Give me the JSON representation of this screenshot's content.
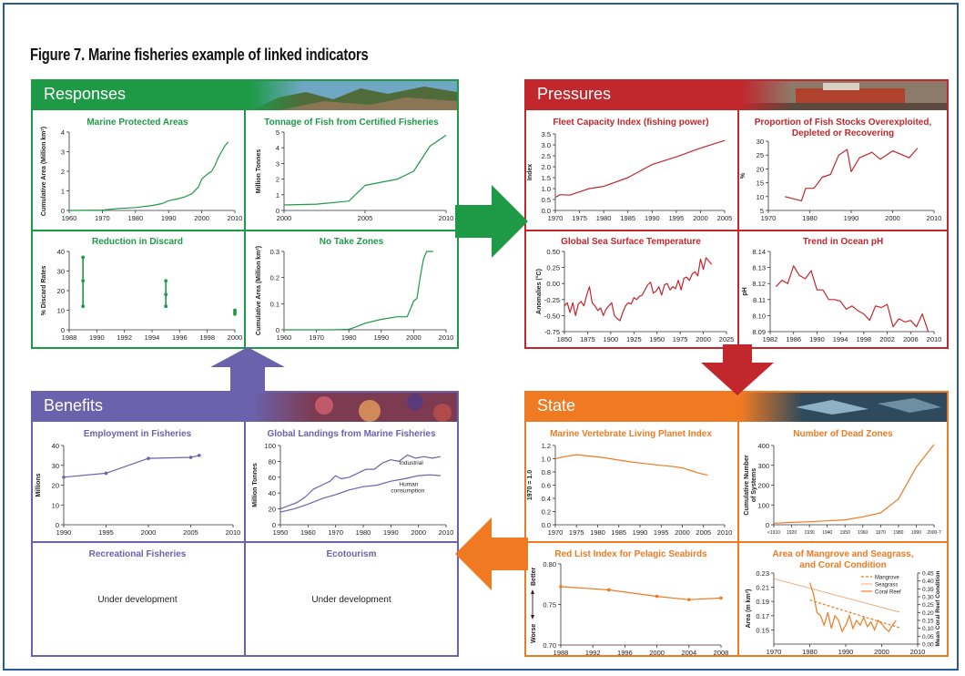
{
  "figure": {
    "title": "Figure 7. Marine fisheries example of linked indicators"
  },
  "responses": {
    "label": "Responses"
  },
  "pressures": {
    "label": "Pressures"
  },
  "state": {
    "label": "State"
  },
  "benefits": {
    "label": "Benefits",
    "recreational_title": "Recreational Fisheries",
    "recreational_note": "Under development",
    "ecotourism_title": "Ecotourism",
    "ecotourism_note": "Under development"
  },
  "chart_data": [
    {
      "type": "line",
      "title": "Marine Protected Areas",
      "ylabel": "Cumulative Area (Million km²)",
      "color": "#1e9a47",
      "xlim": [
        1960,
        2010
      ],
      "ylim": [
        0,
        4
      ],
      "xticks": [
        1960,
        1970,
        1980,
        1990,
        2000,
        2010
      ],
      "yticks": [
        0,
        1,
        2,
        3,
        4
      ],
      "series": [
        {
          "x": [
            1960,
            1970,
            1975,
            1980,
            1985,
            1988,
            1990,
            1993,
            1995,
            1997,
            1999,
            2000,
            2002,
            2003,
            2004,
            2005,
            2006,
            2007,
            2008
          ],
          "y": [
            0,
            0.02,
            0.1,
            0.15,
            0.25,
            0.35,
            0.5,
            0.6,
            0.7,
            0.85,
            1.2,
            1.6,
            1.9,
            2.0,
            2.3,
            2.7,
            3.0,
            3.3,
            3.5
          ]
        }
      ]
    },
    {
      "type": "line",
      "title": "Tonnage of Fish from Certified Fisheries",
      "ylabel": "Million Tonnes",
      "color": "#1e9a47",
      "xlim": [
        2000,
        2010
      ],
      "ylim": [
        0,
        5
      ],
      "xticks": [
        2000,
        2005,
        2010
      ],
      "yticks": [
        0,
        1,
        2,
        3,
        4,
        5
      ],
      "series": [
        {
          "x": [
            2000,
            2002,
            2004,
            2005,
            2006,
            2007,
            2008,
            2009,
            2010
          ],
          "y": [
            0.35,
            0.4,
            0.6,
            1.6,
            1.8,
            2.0,
            2.5,
            4.1,
            4.8
          ]
        }
      ]
    },
    {
      "type": "range",
      "title": "Reduction in Discard",
      "ylabel": "% Discard Rates",
      "color": "#1e9a47",
      "xlim": [
        1988,
        2000
      ],
      "ylim": [
        0,
        40
      ],
      "xticks": [
        1988,
        1990,
        1992,
        1994,
        1996,
        1998,
        2000
      ],
      "yticks": [
        0,
        10,
        20,
        30,
        40
      ],
      "ranges": [
        {
          "x": 1989,
          "points": [
            12,
            25,
            37
          ]
        },
        {
          "x": 1995,
          "points": [
            12,
            18,
            25
          ]
        },
        {
          "x": 2000,
          "points": [
            8,
            9,
            10
          ]
        }
      ]
    },
    {
      "type": "line",
      "title": "No Take Zones",
      "ylabel": "Cumulative Area (Million km²)",
      "color": "#1e9a47",
      "xlim": [
        1960,
        2010
      ],
      "ylim": [
        0,
        0.3
      ],
      "xticks": [
        1960,
        1970,
        1980,
        1990,
        2000,
        2010
      ],
      "yticks": [
        0,
        0.1,
        0.2,
        0.3
      ],
      "series": [
        {
          "x": [
            1960,
            1975,
            1980,
            1982,
            1985,
            1990,
            1995,
            1998,
            2000,
            2001,
            2002,
            2003,
            2004,
            2005,
            2006
          ],
          "y": [
            0,
            0,
            0.002,
            0.01,
            0.025,
            0.04,
            0.05,
            0.05,
            0.11,
            0.12,
            0.2,
            0.27,
            0.3,
            0.3,
            0.3
          ]
        }
      ]
    },
    {
      "type": "line",
      "title": "Fleet Capacity Index (fishing power)",
      "ylabel": "Index",
      "color": "#c1272d",
      "xlim": [
        1970,
        2005
      ],
      "ylim": [
        0,
        3.5
      ],
      "xticks": [
        1970,
        1975,
        1980,
        1985,
        1990,
        1995,
        2000,
        2005
      ],
      "yticks": [
        0,
        0.5,
        1.0,
        1.5,
        2.0,
        2.5,
        3.0,
        3.5
      ],
      "series": [
        {
          "x": [
            1970,
            1971,
            1973,
            1975,
            1977,
            1980,
            1985,
            1990,
            1995,
            2000,
            2005
          ],
          "y": [
            0.6,
            0.72,
            0.7,
            0.85,
            1.0,
            1.1,
            1.5,
            2.1,
            2.45,
            2.85,
            3.2
          ]
        }
      ]
    },
    {
      "type": "line",
      "title_line1": "Proportion of Fish Stocks Overexploited,",
      "title_line2": "Depleted or Recovering",
      "ylabel": "%",
      "color": "#c1272d",
      "xlim": [
        1970,
        2010
      ],
      "ylim": [
        5,
        30
      ],
      "xticks": [
        1970,
        1980,
        1990,
        2000,
        2010
      ],
      "yticks": [
        5,
        10,
        15,
        20,
        25,
        30
      ],
      "series": [
        {
          "x": [
            1974,
            1978,
            1979,
            1981,
            1983,
            1985,
            1987,
            1989,
            1990,
            1992,
            1995,
            1997,
            2000,
            2004,
            2006
          ],
          "y": [
            10,
            8.5,
            13,
            13,
            17,
            18,
            25,
            27,
            19,
            24,
            26,
            23.5,
            26.5,
            24,
            27.5
          ]
        }
      ]
    },
    {
      "type": "line",
      "title": "Global Sea Surface Temperature",
      "ylabel": "Anomalies (°C)",
      "color": "#c1272d",
      "xlim": [
        1850,
        2025
      ],
      "ylim": [
        -0.75,
        0.5
      ],
      "xticks": [
        1850,
        1875,
        1900,
        1925,
        1950,
        1975,
        2000,
        2025
      ],
      "yticks": [
        -0.75,
        -0.5,
        -0.25,
        0,
        0.25,
        0.5
      ],
      "series": [
        {
          "x": [
            1850,
            1853,
            1856,
            1859,
            1862,
            1865,
            1868,
            1871,
            1874,
            1877,
            1880,
            1883,
            1886,
            1889,
            1892,
            1895,
            1898,
            1901,
            1904,
            1907,
            1910,
            1913,
            1916,
            1919,
            1922,
            1925,
            1928,
            1931,
            1934,
            1937,
            1940,
            1943,
            1946,
            1949,
            1952,
            1955,
            1958,
            1961,
            1964,
            1967,
            1970,
            1973,
            1976,
            1979,
            1982,
            1985,
            1988,
            1991,
            1994,
            1997,
            2000,
            2003,
            2006,
            2009
          ],
          "y": [
            -0.35,
            -0.3,
            -0.45,
            -0.3,
            -0.5,
            -0.32,
            -0.28,
            -0.35,
            -0.18,
            -0.05,
            -0.3,
            -0.35,
            -0.42,
            -0.38,
            -0.5,
            -0.4,
            -0.35,
            -0.3,
            -0.5,
            -0.55,
            -0.58,
            -0.45,
            -0.35,
            -0.3,
            -0.32,
            -0.22,
            -0.25,
            -0.2,
            -0.18,
            -0.1,
            -0.02,
            0.02,
            -0.15,
            -0.12,
            -0.05,
            -0.18,
            -0.02,
            0.0,
            -0.1,
            -0.05,
            -0.08,
            0.05,
            -0.1,
            0.08,
            0.1,
            0.05,
            0.15,
            0.18,
            0.12,
            0.38,
            0.22,
            0.4,
            0.35,
            0.3
          ]
        }
      ]
    },
    {
      "type": "line",
      "title": "Trend in Ocean pH",
      "ylabel": "pH",
      "color": "#c1272d",
      "xlim": [
        1982,
        2010
      ],
      "ylim": [
        8.09,
        8.14
      ],
      "xticks": [
        1982,
        1986,
        1990,
        1994,
        1998,
        2002,
        2006,
        2010
      ],
      "yticks": [
        8.09,
        8.1,
        8.11,
        8.12,
        8.13,
        8.14
      ],
      "series": [
        {
          "x": [
            1983,
            1984,
            1985,
            1986,
            1987,
            1988,
            1989,
            1990,
            1991,
            1992,
            1993,
            1994,
            1995,
            1996,
            1997,
            1998,
            1999,
            2000,
            2001,
            2002,
            2003,
            2004,
            2005,
            2006,
            2007,
            2008,
            2009
          ],
          "y": [
            8.118,
            8.122,
            8.12,
            8.131,
            8.125,
            8.123,
            8.128,
            8.116,
            8.116,
            8.11,
            8.11,
            8.109,
            8.104,
            8.106,
            8.103,
            8.101,
            8.097,
            8.106,
            8.105,
            8.107,
            8.093,
            8.098,
            8.096,
            8.097,
            8.093,
            8.101,
            8.09
          ]
        }
      ]
    },
    {
      "type": "line",
      "title": "Employment in Fisheries",
      "ylabel": "Millions",
      "color": "#6b62ad",
      "markers": true,
      "xlim": [
        1990,
        2010
      ],
      "ylim": [
        0,
        40
      ],
      "xticks": [
        1990,
        1995,
        2000,
        2005,
        2010
      ],
      "yticks": [
        0,
        10,
        20,
        30,
        40
      ],
      "series": [
        {
          "x": [
            1990,
            1995,
            2000,
            2005,
            2006
          ],
          "y": [
            24,
            26,
            33.5,
            34,
            35
          ]
        }
      ]
    },
    {
      "type": "line",
      "title": "Global Landings from Marine Fisheries",
      "ylabel": "Million Tonnes",
      "color": "#6b62ad",
      "xlim": [
        1950,
        2010
      ],
      "ylim": [
        0,
        100
      ],
      "xticks": [
        1950,
        1960,
        1970,
        1980,
        1990,
        2000,
        2010
      ],
      "yticks": [
        0,
        20,
        40,
        60,
        80,
        100
      ],
      "series": [
        {
          "name": "Industrial",
          "x": [
            1950,
            1953,
            1956,
            1959,
            1962,
            1965,
            1968,
            1970,
            1972,
            1975,
            1978,
            1981,
            1984,
            1987,
            1990,
            1993,
            1996,
            1999,
            2002,
            2005,
            2008
          ],
          "y": [
            20,
            24,
            28,
            35,
            45,
            50,
            55,
            62,
            58,
            60,
            65,
            70,
            70,
            78,
            82,
            80,
            88,
            84,
            86,
            84,
            86
          ]
        },
        {
          "name": "Human consumption",
          "x": [
            1950,
            1955,
            1960,
            1965,
            1970,
            1975,
            1980,
            1985,
            1990,
            1995,
            2000,
            2004,
            2008
          ],
          "y": [
            16,
            20,
            26,
            33,
            38,
            44,
            48,
            50,
            55,
            58,
            62,
            63,
            62
          ]
        }
      ],
      "annotations": [
        "Industrial",
        "Human",
        "consumption"
      ]
    },
    {
      "type": "line",
      "title": "Marine Vertebrate Living Planet Index",
      "ylabel": "1970 = 1.0",
      "color": "#ef7a22",
      "xlim": [
        1970,
        2010
      ],
      "ylim": [
        0,
        1.2
      ],
      "xticks": [
        1970,
        1975,
        1980,
        1985,
        1990,
        1995,
        2000,
        2005,
        2010
      ],
      "yticks": [
        0,
        0.2,
        0.4,
        0.6,
        0.8,
        1.0,
        1.2
      ],
      "series": [
        {
          "x": [
            1970,
            1972,
            1975,
            1978,
            1981,
            1985,
            1988,
            1992,
            1995,
            1998,
            2000,
            2002,
            2004,
            2006
          ],
          "y": [
            1.0,
            1.03,
            1.06,
            1.04,
            1.02,
            0.98,
            0.95,
            0.92,
            0.9,
            0.88,
            0.86,
            0.82,
            0.78,
            0.75
          ]
        }
      ]
    },
    {
      "type": "line",
      "title": "Number of Dead Zones",
      "ylabel_lines": [
        "Cumulative Number",
        "of Systems"
      ],
      "color": "#ef7a22",
      "categories": [
        "<1910",
        "1920",
        "1930",
        "1940",
        "1950",
        "1960",
        "1970",
        "1980",
        "1990",
        "2000-7"
      ],
      "ylim": [
        0,
        400
      ],
      "yticks": [
        0,
        100,
        200,
        300,
        400
      ],
      "series": [
        {
          "values": [
            8,
            12,
            15,
            20,
            25,
            40,
            60,
            130,
            290,
            405
          ]
        }
      ]
    },
    {
      "type": "line",
      "title": "Red List Index for Pelagic Seabirds",
      "ylabel_lines": [
        "Worse",
        "Better"
      ],
      "color": "#ef7a22",
      "markers": true,
      "xlim": [
        1988,
        2008
      ],
      "ylim": [
        0.7,
        0.8
      ],
      "xticks": [
        1988,
        1992,
        1996,
        2000,
        2004,
        2008
      ],
      "yticks": [
        0.7,
        0.75,
        0.8
      ],
      "series": [
        {
          "x": [
            1988,
            1994,
            2000,
            2004,
            2008
          ],
          "y": [
            0.772,
            0.768,
            0.76,
            0.756,
            0.758
          ]
        }
      ]
    },
    {
      "type": "line",
      "title_line1": "Area of Mangrove and Seagrass,",
      "title_line2": "and Coral Condition",
      "ylabel": "Area (m km²)",
      "y2label": "Mean Coral Reef Condition",
      "color": "#ef7a22",
      "xlim": [
        1970,
        2010
      ],
      "ylim": [
        0.13,
        0.23
      ],
      "y2lim": [
        0,
        0.45
      ],
      "xticks": [
        1970,
        1980,
        1990,
        2000,
        2010
      ],
      "yticks": [
        0.15,
        0.17,
        0.19,
        0.21,
        0.23
      ],
      "y2ticks": [
        0,
        0.05,
        0.1,
        0.15,
        0.2,
        0.25,
        0.3,
        0.35,
        0.4,
        0.45
      ],
      "legend": [
        "Mangrove",
        "Seagrass",
        "Coral Reef"
      ],
      "series": [
        {
          "name": "Mangrove",
          "style": "dashed",
          "axis": "y",
          "x": [
            1980,
            2005
          ],
          "y": [
            0.192,
            0.153
          ]
        },
        {
          "name": "Seagrass",
          "style": "thin",
          "axis": "y",
          "x": [
            1970,
            2005
          ],
          "y": [
            0.222,
            0.175
          ]
        },
        {
          "name": "Coral Reef",
          "style": "solid",
          "axis": "y2",
          "x": [
            1980,
            1981,
            1982,
            1983,
            1984,
            1985,
            1986,
            1987,
            1988,
            1989,
            1990,
            1991,
            1992,
            1993,
            1994,
            1995,
            1996,
            1997,
            1998,
            1999,
            2000,
            2001,
            2002,
            2003,
            2004
          ],
          "y": [
            0.39,
            0.32,
            0.2,
            0.18,
            0.12,
            0.2,
            0.1,
            0.18,
            0.15,
            0.08,
            0.12,
            0.18,
            0.1,
            0.15,
            0.12,
            0.17,
            0.11,
            0.14,
            0.09,
            0.15,
            0.13,
            0.1,
            0.08,
            0.12,
            0.15
          ]
        }
      ]
    }
  ]
}
